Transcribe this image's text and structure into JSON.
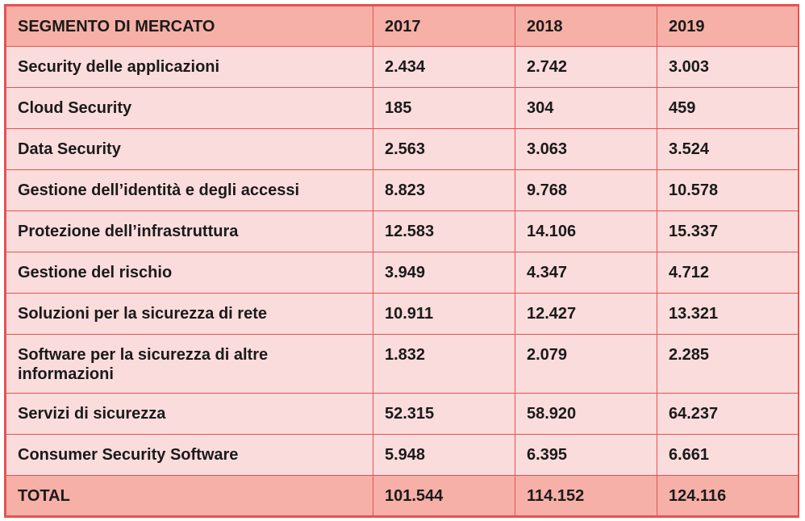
{
  "chart_data": {
    "type": "table",
    "columns": [
      "SEGMENTO DI MERCATO",
      "2017",
      "2018",
      "2019"
    ],
    "rows": [
      [
        "Security delle applicazioni",
        "2.434",
        "2.742",
        "3.003"
      ],
      [
        "Cloud Security",
        "185",
        "304",
        "459"
      ],
      [
        "Data Security",
        "2.563",
        "3.063",
        "3.524"
      ],
      [
        "Gestione dell’identità e degli accessi",
        "8.823",
        "9.768",
        "10.578"
      ],
      [
        "Protezione dell’infrastruttura",
        "12.583",
        "14.106",
        "15.337"
      ],
      [
        "Gestione del rischio",
        "3.949",
        "4.347",
        "4.712"
      ],
      [
        "Soluzioni per la sicurezza di rete",
        "10.911",
        "12.427",
        "13.321"
      ],
      [
        "Software per la sicurezza di altre informazioni",
        "1.832",
        "2.079",
        "2.285"
      ],
      [
        "Servizi di sicurezza",
        "52.315",
        "58.920",
        "64.237"
      ],
      [
        "Consumer Security Software",
        "5.948",
        "6.395",
        "6.661"
      ]
    ],
    "total": [
      "TOTAL",
      "101.544",
      "114.152",
      "124.116"
    ]
  },
  "colors": {
    "border": "#e8514f",
    "header_bg": "#f6b0a7",
    "row_bg": "#fbdcdc"
  }
}
